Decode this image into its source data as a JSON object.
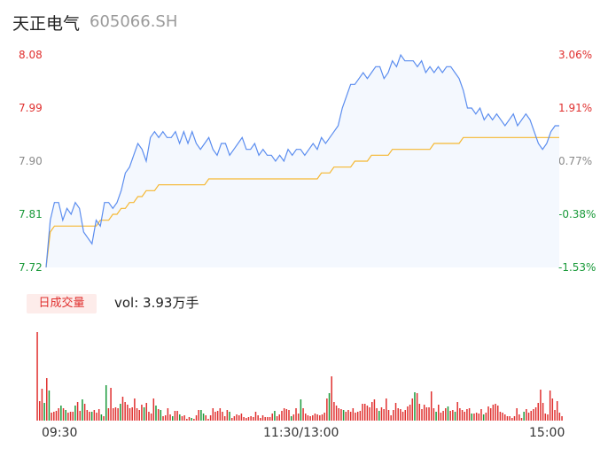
{
  "header": {
    "name": "天正电气",
    "code": "605066.SH"
  },
  "colors": {
    "price_line": "#5b8def",
    "avg_line": "#f5b731",
    "up": "#e0302f",
    "down": "#1a9a3a",
    "neutral": "#8a8a8a"
  },
  "chart_data": [
    {
      "type": "line",
      "y_left_ticks": [
        "8.08",
        "7.99",
        "7.90",
        "7.81",
        "7.72"
      ],
      "y_right_ticks": [
        "3.06%",
        "1.91%",
        "0.77%",
        "-0.38%",
        "-1.53%"
      ],
      "ylim": [
        7.72,
        8.08
      ],
      "prev_close": 7.84,
      "series": [
        {
          "values": [
            7.72,
            7.8,
            7.83,
            7.83,
            7.8,
            7.82,
            7.81,
            7.83,
            7.82,
            7.78,
            7.77,
            7.76,
            7.8,
            7.79,
            7.83,
            7.83,
            7.82,
            7.83,
            7.85,
            7.88,
            7.89,
            7.91,
            7.93,
            7.92,
            7.9,
            7.94,
            7.95,
            7.94,
            7.95,
            7.94,
            7.94,
            7.95,
            7.93,
            7.95,
            7.93,
            7.95,
            7.93,
            7.92,
            7.93,
            7.94,
            7.92,
            7.91,
            7.93,
            7.93,
            7.91,
            7.92,
            7.93,
            7.94,
            7.92,
            7.92,
            7.93,
            7.91,
            7.92,
            7.91,
            7.91,
            7.9,
            7.91,
            7.9,
            7.92,
            7.91,
            7.92,
            7.92,
            7.91,
            7.92,
            7.93,
            7.92,
            7.94,
            7.93,
            7.94,
            7.95,
            7.96,
            7.99,
            8.01,
            8.03,
            8.03,
            8.04,
            8.05,
            8.04,
            8.05,
            8.06,
            8.06,
            8.04,
            8.05,
            8.07,
            8.06,
            8.08,
            8.07,
            8.07,
            8.07,
            8.06,
            8.07,
            8.05,
            8.06,
            8.05,
            8.06,
            8.05,
            8.06,
            8.06,
            8.05,
            8.04,
            8.02,
            7.99,
            7.99,
            7.98,
            7.99,
            7.97,
            7.98,
            7.97,
            7.98,
            7.97,
            7.96,
            7.97,
            7.98,
            7.96,
            7.97,
            7.98,
            7.97,
            7.95,
            7.93,
            7.92,
            7.93,
            7.95,
            7.96,
            7.96
          ]
        },
        {
          "values": [
            7.72,
            7.78,
            7.79,
            7.79,
            7.79,
            7.79,
            7.79,
            7.79,
            7.79,
            7.79,
            7.79,
            7.79,
            7.79,
            7.8,
            7.8,
            7.8,
            7.81,
            7.81,
            7.82,
            7.82,
            7.83,
            7.83,
            7.84,
            7.84,
            7.85,
            7.85,
            7.85,
            7.86,
            7.86,
            7.86,
            7.86,
            7.86,
            7.86,
            7.86,
            7.86,
            7.86,
            7.86,
            7.86,
            7.86,
            7.87,
            7.87,
            7.87,
            7.87,
            7.87,
            7.87,
            7.87,
            7.87,
            7.87,
            7.87,
            7.87,
            7.87,
            7.87,
            7.87,
            7.87,
            7.87,
            7.87,
            7.87,
            7.87,
            7.87,
            7.87,
            7.87,
            7.87,
            7.87,
            7.87,
            7.87,
            7.87,
            7.88,
            7.88,
            7.88,
            7.89,
            7.89,
            7.89,
            7.89,
            7.89,
            7.9,
            7.9,
            7.9,
            7.9,
            7.91,
            7.91,
            7.91,
            7.91,
            7.91,
            7.92,
            7.92,
            7.92,
            7.92,
            7.92,
            7.92,
            7.92,
            7.92,
            7.92,
            7.92,
            7.93,
            7.93,
            7.93,
            7.93,
            7.93,
            7.93,
            7.93,
            7.94,
            7.94,
            7.94,
            7.94,
            7.94,
            7.94,
            7.94,
            7.94,
            7.94,
            7.94,
            7.94,
            7.94,
            7.94,
            7.94,
            7.94,
            7.94,
            7.94,
            7.94,
            7.94,
            7.94,
            7.94,
            7.94,
            7.94,
            7.94
          ]
        }
      ]
    },
    {
      "type": "bar",
      "volume_label": "日成交量",
      "volume_text": "vol: 3.93万手",
      "x_ticks": [
        "09:30",
        "11:30/13:00",
        "15:00"
      ],
      "ylim": [
        0,
        100
      ],
      "values": [
        100,
        22,
        36,
        20,
        48,
        34,
        9,
        10,
        11,
        14,
        17,
        14,
        12,
        9,
        10,
        10,
        17,
        21,
        11,
        24,
        19,
        12,
        10,
        10,
        12,
        9,
        13,
        7,
        5,
        40,
        14,
        37,
        14,
        15,
        14,
        19,
        27,
        21,
        18,
        14,
        15,
        25,
        14,
        12,
        18,
        15,
        20,
        10,
        8,
        25,
        17,
        13,
        12,
        5,
        6,
        14,
        7,
        5,
        11,
        11,
        7,
        5,
        6,
        2,
        4,
        3,
        2,
        6,
        12,
        12,
        8,
        6,
        2,
        6,
        14,
        10,
        11,
        14,
        10,
        5,
        12,
        10,
        3,
        5,
        7,
        6,
        8,
        4,
        3,
        4,
        5,
        4,
        10,
        6,
        3,
        6,
        4,
        4,
        4,
        8,
        11,
        5,
        7,
        11,
        14,
        13,
        12,
        5,
        7,
        14,
        8,
        24,
        14,
        8,
        6,
        5,
        6,
        8,
        7,
        6,
        7,
        9,
        25,
        31,
        50,
        21,
        17,
        14,
        13,
        12,
        10,
        12,
        10,
        14,
        9,
        10,
        11,
        19,
        19,
        17,
        15,
        21,
        24,
        14,
        11,
        15,
        13,
        25,
        12,
        6,
        12,
        20,
        14,
        13,
        10,
        12,
        16,
        18,
        25,
        32,
        31,
        19,
        13,
        18,
        15,
        15,
        33,
        14,
        10,
        18,
        9,
        11,
        14,
        16,
        11,
        12,
        10,
        21,
        14,
        12,
        10,
        13,
        14,
        8,
        8,
        9,
        8,
        13,
        7,
        9,
        16,
        14,
        18,
        19,
        17,
        10,
        9,
        7,
        5,
        5,
        3,
        5,
        14,
        7,
        3,
        10,
        13,
        9,
        11,
        13,
        15,
        20,
        35,
        20,
        8,
        7,
        34,
        25,
        12,
        22,
        9,
        5
      ],
      "colors_seq": "RRRGRGRRRRGRGRRRGRRGRRRGRRRGRGRRRRRGRRRRRRRRRGRRRRGRGRRRRGRRGRRRRGRRRGGRRRRRRRRRRGRRRRRRRRRRRRRRRRRRGRRRRRRGRRRGRRRRRRRRRRRGRRRRRGRRRRRRRRRRRRRRGRRRRRRRRRRRRRRGRRRRRRRRGRRRRGRRGRRRRRRGRRRRGRRRRRRRRRRRRRRRRGRRRRRRRRRRRRRRRRGRRGRGRRRGRRRRRRRRRRRGRRGRRRGRRRGRRRRRRG"
    }
  ]
}
